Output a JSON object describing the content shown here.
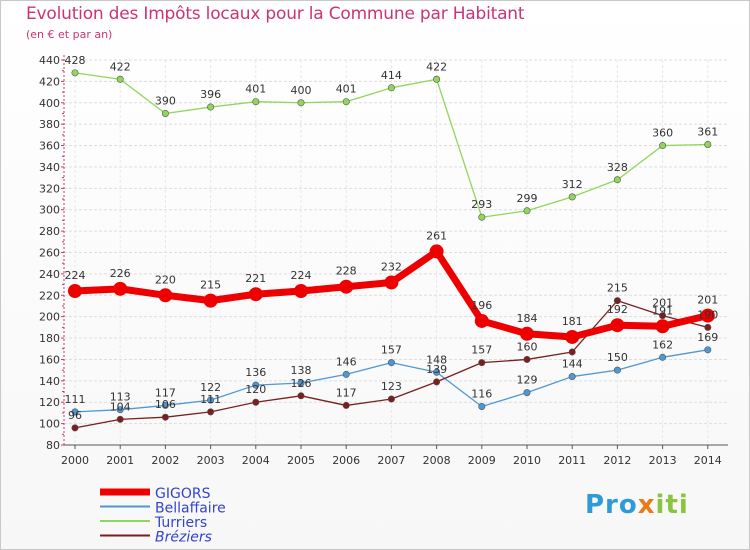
{
  "chart_data": {
    "type": "line",
    "title": "Evolution des Impôts locaux pour la Commune par Habitant",
    "subtitle": "(en € et par an)",
    "x": [
      "2000",
      "2001",
      "2002",
      "2003",
      "2004",
      "2005",
      "2006",
      "2007",
      "2008",
      "2009",
      "2010",
      "2011",
      "2012",
      "2013",
      "2014"
    ],
    "ylim": [
      80,
      440
    ],
    "yticks": [
      80,
      100,
      120,
      140,
      160,
      180,
      200,
      220,
      240,
      260,
      280,
      300,
      320,
      340,
      360,
      380,
      400,
      420,
      440
    ],
    "grid": true,
    "series": [
      {
        "name": "GIGORS",
        "color": "#ee0000",
        "values": [
          224,
          226,
          220,
          215,
          221,
          224,
          228,
          232,
          261,
          196,
          184,
          181,
          192,
          191,
          201
        ],
        "labels": [
          "224",
          "226",
          "220",
          "215",
          "221",
          "224",
          "228",
          "232",
          "261",
          "196",
          "184",
          "181",
          "192",
          "191",
          "201"
        ]
      },
      {
        "name": "Bellaffaire",
        "color": "#4f98d4",
        "values": [
          111,
          113,
          117,
          122,
          136,
          138,
          146,
          157,
          148,
          116,
          129,
          144,
          150,
          162,
          169
        ],
        "labels": [
          "111",
          "113",
          "117",
          "122",
          "136",
          "138",
          "146",
          "157",
          "148",
          "116",
          "129",
          "144",
          "150",
          "162",
          "169"
        ]
      },
      {
        "name": "Turriers",
        "color": "#8fd65a",
        "values": [
          428,
          422,
          390,
          396,
          401,
          400,
          401,
          414,
          422,
          293,
          299,
          312,
          328,
          360,
          361
        ],
        "labels": [
          "428",
          "422",
          "390",
          "396",
          "401",
          "400",
          "401",
          "414",
          "422",
          "293",
          "299",
          "312",
          "328",
          "360",
          "361"
        ]
      },
      {
        "name": "Bréziers",
        "color": "#7a1e1e",
        "values": [
          96,
          104,
          106,
          111,
          120,
          126,
          117,
          123,
          139,
          157,
          160,
          167,
          215,
          201,
          190
        ],
        "labels": [
          "96",
          "104",
          "106",
          "111",
          "120",
          "126",
          "117",
          "123",
          "139",
          "157",
          "160",
          "",
          "215",
          "201",
          "190"
        ]
      }
    ],
    "legend": {
      "position": "bottom-left",
      "entries": [
        "GIGORS",
        "Bellaffaire",
        "Turriers",
        "Bréziers"
      ]
    }
  },
  "logo": {
    "part1": "Pro",
    "part2": "x",
    "part3": "iti"
  }
}
